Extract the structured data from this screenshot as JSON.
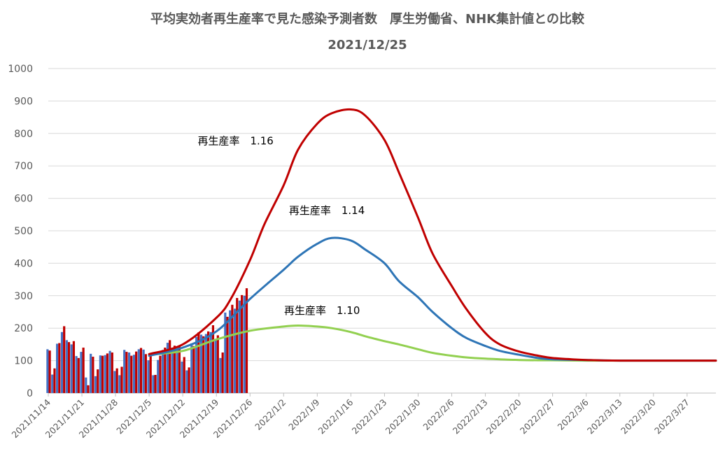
{
  "chart_data": {
    "type": "line",
    "title": "平均実効者再生産率で見た感染予測者数　厚生労働省、NHK集計値との比較",
    "subtitle": "2021/12/25",
    "ylim": [
      0,
      1000
    ],
    "yticks": [
      0,
      100,
      200,
      300,
      400,
      500,
      600,
      700,
      800,
      900,
      1000
    ],
    "xlim": [
      "2021-11-14",
      "2022-04-02"
    ],
    "x_tick_labels": [
      "2021/11/14",
      "2021/11/21",
      "2021/11/28",
      "2021/12/5",
      "2021/12/12",
      "2021/12/19",
      "2021/12/26",
      "2022/1/2",
      "2022/1/9",
      "2022/1/16",
      "2022/1/23",
      "2022/1/30",
      "2022/2/6",
      "2022/2/13",
      "2022/2/20",
      "2022/2/27",
      "2022/3/6",
      "2022/3/13",
      "2022/3/20",
      "2022/3/27"
    ],
    "x_tick_dates": [
      "2021-11-14",
      "2021-11-21",
      "2021-11-28",
      "2021-12-05",
      "2021-12-12",
      "2021-12-19",
      "2021-12-26",
      "2022-01-02",
      "2022-01-09",
      "2022-01-16",
      "2022-01-23",
      "2022-01-30",
      "2022-02-06",
      "2022-02-13",
      "2022-02-20",
      "2022-02-27",
      "2022-03-06",
      "2022-03-13",
      "2022-03-20",
      "2022-03-27"
    ],
    "grid": true,
    "legend": "none",
    "bar_series": {
      "dates": [
        "2021-11-14",
        "2021-11-15",
        "2021-11-16",
        "2021-11-17",
        "2021-11-18",
        "2021-11-19",
        "2021-11-20",
        "2021-11-21",
        "2021-11-22",
        "2021-11-23",
        "2021-11-24",
        "2021-11-25",
        "2021-11-26",
        "2021-11-27",
        "2021-11-28",
        "2021-11-29",
        "2021-11-30",
        "2021-12-01",
        "2021-12-02",
        "2021-12-03",
        "2021-12-04",
        "2021-12-05",
        "2021-12-06",
        "2021-12-07",
        "2021-12-08",
        "2021-12-09",
        "2021-12-10",
        "2021-12-11",
        "2021-12-12",
        "2021-12-13",
        "2021-12-14",
        "2021-12-15",
        "2021-12-16",
        "2021-12-17",
        "2021-12-18",
        "2021-12-19",
        "2021-12-20",
        "2021-12-21",
        "2021-12-22",
        "2021-12-23",
        "2021-12-24",
        "2021-12-25"
      ],
      "mhlw": [
        135,
        57,
        152,
        188,
        163,
        150,
        114,
        127,
        48,
        121,
        52,
        116,
        117,
        130,
        68,
        55,
        133,
        125,
        118,
        135,
        134,
        101,
        55,
        102,
        133,
        155,
        140,
        143,
        97,
        70,
        153,
        173,
        180,
        182,
        188,
        163,
        108,
        248,
        255,
        260,
        285,
        300
      ],
      "mhlw_color": "#4472c4",
      "nhk": [
        131,
        76,
        154,
        206,
        157,
        160,
        108,
        140,
        24,
        112,
        73,
        115,
        122,
        125,
        76,
        81,
        127,
        115,
        128,
        139,
        120,
        117,
        56,
        115,
        140,
        163,
        146,
        145,
        111,
        79,
        145,
        187,
        175,
        190,
        209,
        178,
        125,
        235,
        272,
        293,
        302,
        323
      ],
      "nhk_color": "#c00000"
    },
    "series": [
      {
        "name": "再生産率　1.16",
        "label_at": [
          "2021-12-23",
          766
        ],
        "color": "#c00000",
        "x": [
          "2021-12-05",
          "2021-12-12",
          "2021-12-19",
          "2021-12-22",
          "2021-12-26",
          "2021-12-29",
          "2022-01-02",
          "2022-01-05",
          "2022-01-09",
          "2022-01-12",
          "2022-01-16",
          "2022-01-19",
          "2022-01-23",
          "2022-01-26",
          "2022-01-30",
          "2022-02-02",
          "2022-02-06",
          "2022-02-09",
          "2022-02-13",
          "2022-02-16",
          "2022-02-20",
          "2022-02-24",
          "2022-02-27",
          "2022-03-03",
          "2022-03-06",
          "2022-03-13",
          "2022-04-02"
        ],
        "values": [
          120,
          150,
          232,
          290,
          410,
          520,
          640,
          750,
          830,
          862,
          874,
          855,
          780,
          680,
          540,
          430,
          330,
          260,
          185,
          150,
          128,
          115,
          108,
          104,
          102,
          100,
          100
        ]
      },
      {
        "name": "再生産率　1.14",
        "label_at": [
          "2022-01-11",
          552
        ],
        "color": "#2e75b6",
        "x": [
          "2021-12-05",
          "2021-12-12",
          "2021-12-19",
          "2021-12-26",
          "2022-01-02",
          "2022-01-05",
          "2022-01-09",
          "2022-01-12",
          "2022-01-16",
          "2022-01-19",
          "2022-01-23",
          "2022-01-26",
          "2022-01-30",
          "2022-02-02",
          "2022-02-06",
          "2022-02-09",
          "2022-02-13",
          "2022-02-16",
          "2022-02-20",
          "2022-02-24",
          "2022-02-27",
          "2022-03-06",
          "2022-03-13",
          "2022-04-02"
        ],
        "values": [
          115,
          140,
          190,
          290,
          380,
          420,
          460,
          478,
          470,
          442,
          400,
          345,
          295,
          250,
          200,
          170,
          145,
          130,
          118,
          108,
          104,
          102,
          100,
          100
        ]
      },
      {
        "name": "再生産率　1.10",
        "label_at": [
          "2022-01-10",
          244
        ],
        "color": "#92d050",
        "x": [
          "2021-12-05",
          "2021-12-12",
          "2021-12-19",
          "2021-12-26",
          "2022-01-02",
          "2022-01-05",
          "2022-01-09",
          "2022-01-12",
          "2022-01-16",
          "2022-01-19",
          "2022-01-23",
          "2022-01-26",
          "2022-01-30",
          "2022-02-02",
          "2022-02-06",
          "2022-02-09",
          "2022-02-13",
          "2022-02-16",
          "2022-02-20",
          "2022-02-24",
          "2022-02-27",
          "2022-03-06",
          "2022-03-13",
          "2022-04-02"
        ],
        "values": [
          118,
          130,
          165,
          192,
          205,
          208,
          205,
          200,
          188,
          175,
          160,
          150,
          135,
          124,
          115,
          110,
          106,
          104,
          102,
          101,
          101,
          100,
          100,
          100
        ]
      }
    ]
  }
}
